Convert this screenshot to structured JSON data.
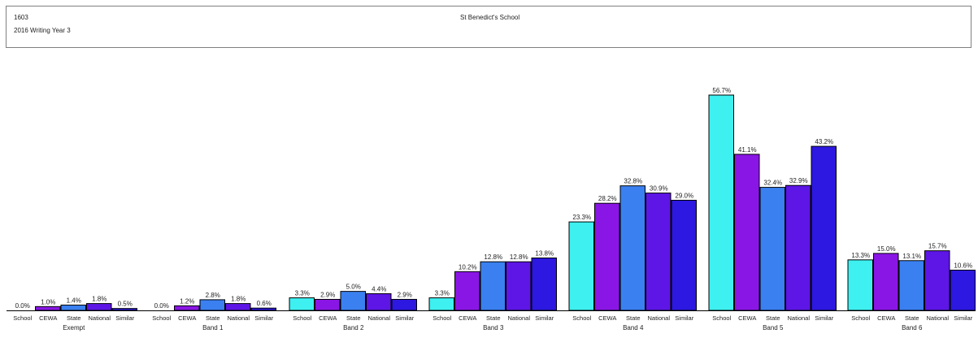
{
  "header": {
    "code": "1603",
    "report_title": "2016 Writing Year 3",
    "school_name": "St Benedict's School"
  },
  "chart_data": {
    "type": "bar",
    "value_format": "percent_one_decimal",
    "series": [
      "School",
      "CEWA",
      "State",
      "National",
      "Similar"
    ],
    "colors": [
      "#3ef0f0",
      "#8a16e6",
      "#3a80f0",
      "#5d16e6",
      "#2c18e0"
    ],
    "groups": [
      {
        "label": "Exempt",
        "values": [
          0.0,
          1.0,
          1.4,
          1.8,
          0.5
        ]
      },
      {
        "label": "Band 1",
        "values": [
          0.0,
          1.2,
          2.8,
          1.8,
          0.6
        ]
      },
      {
        "label": "Band 2",
        "values": [
          3.3,
          2.9,
          5.0,
          4.4,
          2.9
        ]
      },
      {
        "label": "Band 3",
        "values": [
          3.3,
          10.2,
          12.8,
          12.8,
          13.8
        ]
      },
      {
        "label": "Band 4",
        "values": [
          23.3,
          28.2,
          32.8,
          30.9,
          29.0
        ]
      },
      {
        "label": "Band 5",
        "values": [
          56.7,
          41.1,
          32.4,
          32.9,
          43.2
        ]
      },
      {
        "label": "Band 6",
        "values": [
          13.3,
          15.0,
          13.1,
          15.7,
          10.6
        ]
      }
    ],
    "ylim": [
      0,
      60
    ],
    "grid": false,
    "legend": "none"
  }
}
